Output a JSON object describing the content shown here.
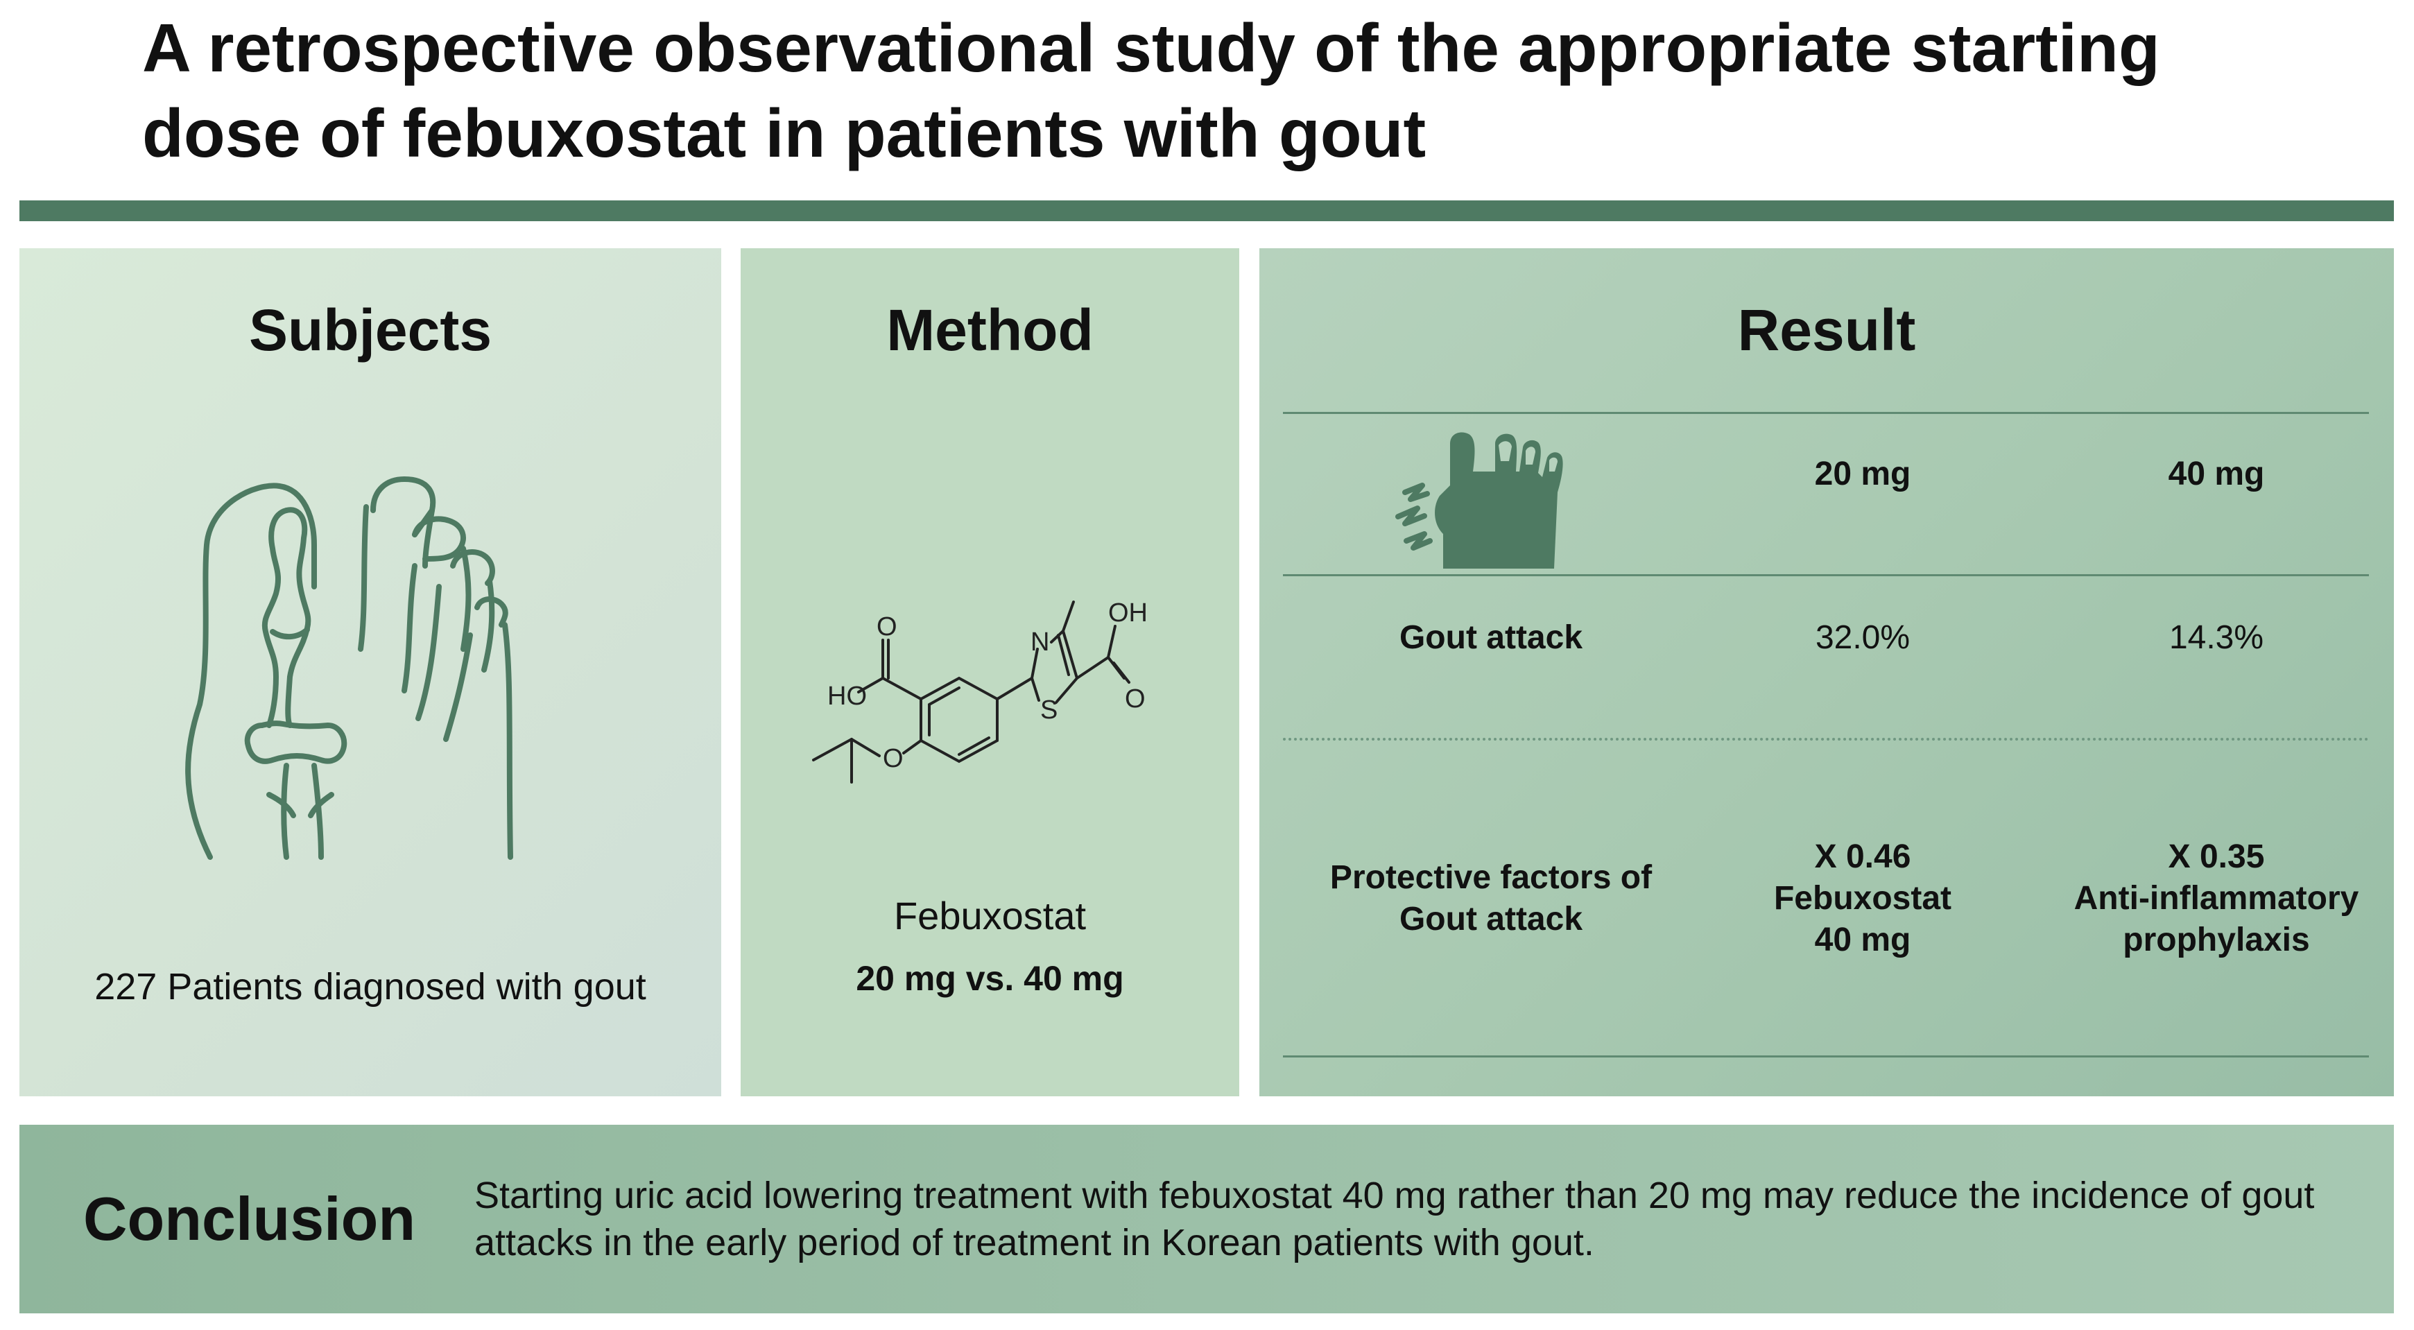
{
  "title": "A retrospective observational study of the appropriate starting dose of febuxostat in patients with gout",
  "subjects": {
    "heading": "Subjects",
    "caption": "227 Patients diagnosed with gout"
  },
  "method": {
    "heading": "Method",
    "molecule_labels": {
      "ho": "HO",
      "o_left": "O",
      "n": "N",
      "s": "S",
      "oh": "OH",
      "o_right": "O",
      "o_ether": "O"
    },
    "drug": "Febuxostat",
    "doses": "20 mg vs.  40 mg"
  },
  "result": {
    "heading": "Result",
    "col_20": "20 mg",
    "col_40": "40 mg",
    "row1_label": "Gout attack",
    "row1_20": "32.0%",
    "row1_40": "14.3%",
    "row2_label_line1": "Protective factors of",
    "row2_label_line2": "Gout attack",
    "row2_20_line1": "X 0.46",
    "row2_20_line2": "Febuxostat",
    "row2_20_line3": "40 mg",
    "row2_40_line1": "X 0.35",
    "row2_40_line2": "Anti-inflammatory",
    "row2_40_line3": "prophylaxis"
  },
  "conclusion": {
    "heading": "Conclusion",
    "text": "Starting uric acid lowering treatment with febuxostat 40 mg rather than 20 mg may reduce the incidence of gout attacks in the early period of treatment in Korean patients with gout."
  },
  "colors": {
    "accent": "#4e7a62",
    "icon": "#4e7a62"
  }
}
